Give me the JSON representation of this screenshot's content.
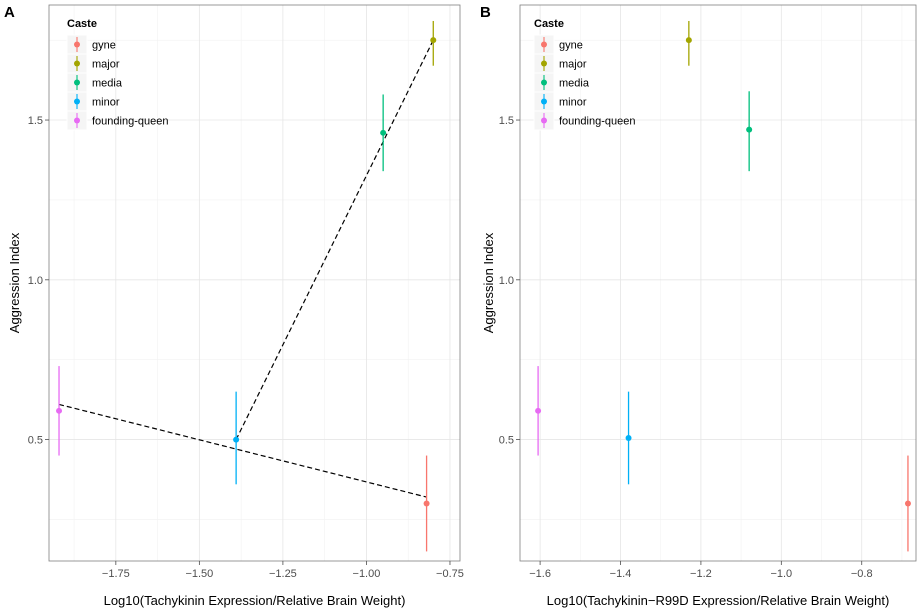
{
  "chart_data": [
    {
      "type": "scatter",
      "panel": "A",
      "xlabel": "Log10(Tachykinin Expression/Relative Brain Weight)",
      "ylabel": "Aggression Index",
      "xlim": [
        -1.95,
        -0.72
      ],
      "ylim": [
        0.12,
        1.86
      ],
      "xticks": [
        -1.75,
        -1.5,
        -1.25,
        -1.0,
        -0.75
      ],
      "xtick_labels": [
        "−1.75",
        "−1.50",
        "−1.25",
        "−1.00",
        "−0.75"
      ],
      "yticks": [
        0.5,
        1.0,
        1.5
      ],
      "ytick_labels": [
        "0.5",
        "1.0",
        "1.5"
      ],
      "grid": true,
      "legend": {
        "title": "Caste",
        "position": "top-left"
      },
      "points": [
        {
          "caste": "gyne",
          "x": -0.82,
          "y": 0.3,
          "ymin": 0.15,
          "ymax": 0.45
        },
        {
          "caste": "major",
          "x": -0.8,
          "y": 1.75,
          "ymin": 1.67,
          "ymax": 1.81
        },
        {
          "caste": "media",
          "x": -0.95,
          "y": 1.46,
          "ymin": 1.34,
          "ymax": 1.58
        },
        {
          "caste": "minor",
          "x": -1.39,
          "y": 0.5,
          "ymin": 0.36,
          "ymax": 0.65
        },
        {
          "caste": "founding-queen",
          "x": -1.92,
          "y": 0.59,
          "ymin": 0.45,
          "ymax": 0.73
        }
      ],
      "fit_lines": [
        {
          "style": "dashed",
          "from": [
            -1.92,
            0.61
          ],
          "to": [
            -0.82,
            0.32
          ]
        },
        {
          "style": "dashed",
          "from": [
            -1.39,
            0.5
          ],
          "to": [
            -0.8,
            1.75
          ]
        }
      ]
    },
    {
      "type": "scatter",
      "panel": "B",
      "xlabel": "Log10(Tachykinin−R99D Expression/Relative Brain Weight)",
      "ylabel": "Aggression Index",
      "xlim": [
        -1.65,
        -0.665
      ],
      "ylim": [
        0.12,
        1.86
      ],
      "xticks": [
        -1.6,
        -1.4,
        -1.2,
        -1.0,
        -0.8
      ],
      "xtick_labels": [
        "−1.6",
        "−1.4",
        "−1.2",
        "−1.0",
        "−0.8"
      ],
      "yticks": [
        0.5,
        1.0,
        1.5
      ],
      "ytick_labels": [
        "0.5",
        "1.0",
        "1.5"
      ],
      "grid": true,
      "legend": {
        "title": "Caste",
        "position": "top-left"
      },
      "points": [
        {
          "caste": "gyne",
          "x": -0.685,
          "y": 0.3,
          "ymin": 0.15,
          "ymax": 0.45
        },
        {
          "caste": "major",
          "x": -1.23,
          "y": 1.75,
          "ymin": 1.67,
          "ymax": 1.81
        },
        {
          "caste": "media",
          "x": -1.08,
          "y": 1.47,
          "ymin": 1.34,
          "ymax": 1.59
        },
        {
          "caste": "minor",
          "x": -1.38,
          "y": 0.505,
          "ymin": 0.36,
          "ymax": 0.65
        },
        {
          "caste": "founding-queen",
          "x": -1.605,
          "y": 0.59,
          "ymin": 0.45,
          "ymax": 0.73
        }
      ],
      "fit_lines": []
    }
  ],
  "legend": {
    "title": "Caste",
    "entries": [
      {
        "label": "gyne",
        "color": "#F8766D"
      },
      {
        "label": "major",
        "color": "#A3A500"
      },
      {
        "label": "media",
        "color": "#00BF7D"
      },
      {
        "label": "minor",
        "color": "#00B0F6"
      },
      {
        "label": "founding-queen",
        "color": "#E76BF3"
      }
    ]
  },
  "colors": {
    "gyne": "#F8766D",
    "major": "#A3A500",
    "media": "#00BF7D",
    "minor": "#00B0F6",
    "founding-queen": "#E76BF3"
  }
}
